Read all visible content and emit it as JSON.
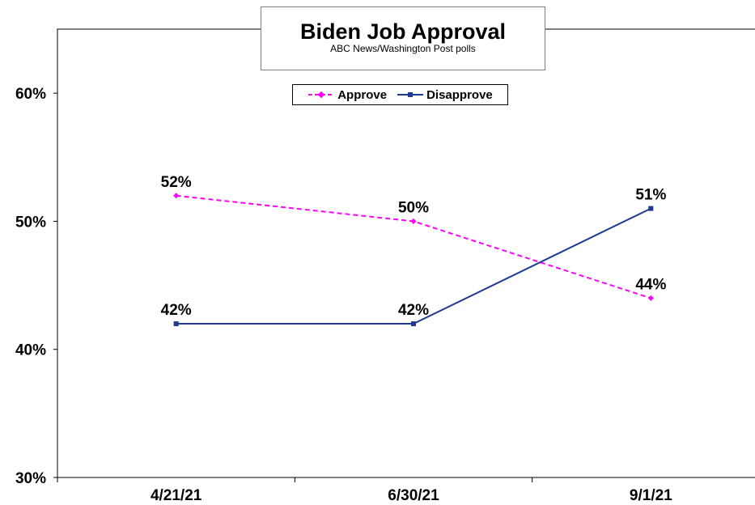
{
  "chart_data": {
    "type": "line",
    "title": "Biden Job Approval",
    "subtitle": "ABC News/Washington Post polls",
    "categories": [
      "4/21/21",
      "6/30/21",
      "9/1/21"
    ],
    "series": [
      {
        "name": "Approve",
        "values": [
          52,
          50,
          44
        ],
        "labels": [
          "52%",
          "50%",
          "44%"
        ],
        "color": "#ff00ff",
        "dash": true,
        "marker": "diamond"
      },
      {
        "name": "Disapprove",
        "values": [
          42,
          42,
          51
        ],
        "labels": [
          "42%",
          "42%",
          "51%"
        ],
        "color": "#1f3a93",
        "dash": false,
        "marker": "square"
      }
    ],
    "y_ticks": [
      30,
      40,
      50,
      60
    ],
    "y_tick_labels": [
      "30%",
      "40%",
      "50%",
      "60%"
    ],
    "ylim": [
      30,
      65
    ],
    "grid": false,
    "legend_position": "top-center"
  }
}
